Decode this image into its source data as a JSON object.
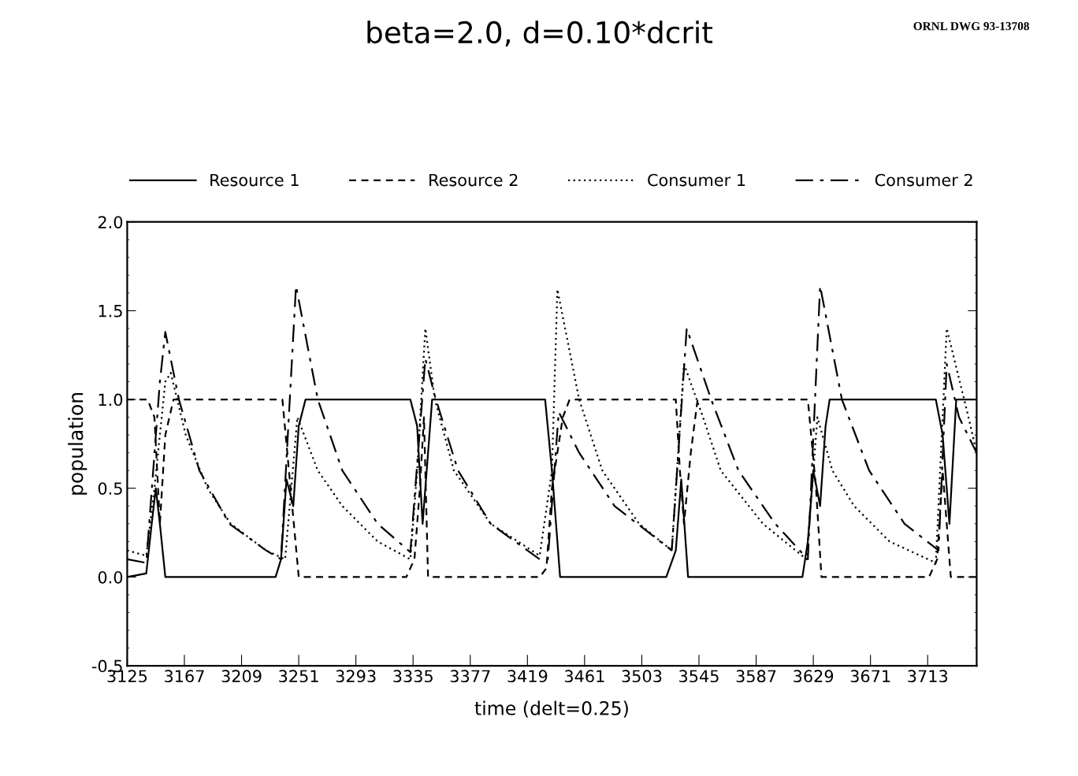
{
  "chart_data": {
    "type": "line",
    "title": "beta=2.0, d=0.10*dcrit",
    "xlabel": "time (delt=0.25)",
    "ylabel": "population",
    "annotations": [
      "ORNL DWG 93-13708"
    ],
    "legend": "top",
    "grid": false,
    "marker": "none",
    "xlim": [
      3125,
      3749
    ],
    "xticks": [
      3125,
      3167,
      3209,
      3251,
      3293,
      3335,
      3377,
      3419,
      3461,
      3503,
      3545,
      3587,
      3629,
      3671,
      3713
    ],
    "ylim": [
      -0.5,
      2.0
    ],
    "yticks": [
      {
        "value": -0.5,
        "label": "-0.5"
      },
      {
        "value": 0,
        "label": "0.0"
      },
      {
        "value": 0.5,
        "label": "0.5"
      },
      {
        "value": 1,
        "label": "1.0"
      },
      {
        "value": 1.5,
        "label": "1.5"
      },
      {
        "value": 2,
        "label": "2.0"
      }
    ],
    "series": [
      {
        "name": "Resource 1",
        "color": "#000000",
        "line_style": "solid",
        "x": [
          3125,
          3139,
          3143,
          3146,
          3149,
          3153,
          3234,
          3238,
          3242,
          3247,
          3251,
          3256,
          3333,
          3338,
          3342,
          3345,
          3349,
          3432,
          3437,
          3443,
          3521,
          3528,
          3532,
          3537,
          3621,
          3625,
          3629,
          3634,
          3638,
          3641,
          3719,
          3724,
          3729,
          3734,
          3749
        ],
        "values": [
          0,
          0.02,
          0.3,
          0.5,
          0.3,
          0,
          0,
          0.1,
          0.55,
          0.4,
          0.85,
          1.0,
          1.0,
          0.85,
          0.3,
          0.6,
          1.0,
          1.0,
          0.6,
          0,
          0,
          0.15,
          0.55,
          0,
          0,
          0.2,
          0.6,
          0.4,
          0.85,
          1.0,
          1.0,
          0.8,
          0.3,
          1.0,
          1.0
        ]
      },
      {
        "name": "Resource 2",
        "color": "#000000",
        "line_style": "dashed",
        "x": [
          3125,
          3140,
          3145,
          3149,
          3153,
          3159,
          3239,
          3245,
          3251,
          3330,
          3336,
          3340,
          3343,
          3346,
          3428,
          3433,
          3437,
          3445,
          3450,
          3528,
          3531,
          3534,
          3539,
          3544,
          3625,
          3631,
          3635,
          3714,
          3720,
          3724,
          3730,
          3749
        ],
        "values": [
          1.0,
          1.0,
          0.9,
          0.3,
          0.8,
          1.0,
          1.0,
          0.5,
          0,
          0,
          0.1,
          0.5,
          0.9,
          0,
          0,
          0.05,
          0.5,
          0.9,
          1.0,
          1.0,
          0.6,
          0.3,
          0.7,
          1.0,
          1.0,
          0.5,
          0,
          0,
          0.1,
          0.6,
          0,
          0
        ]
      },
      {
        "name": "Consumer 1",
        "color": "#000000",
        "line_style": "dotted",
        "x": [
          3125,
          3139,
          3145,
          3153,
          3157,
          3168,
          3184,
          3201,
          3227,
          3241,
          3250,
          3265,
          3283,
          3309,
          3333,
          3338,
          3344,
          3351,
          3365,
          3392,
          3428,
          3437,
          3441,
          3457,
          3474,
          3501,
          3525,
          3534,
          3548,
          3561,
          3592,
          3624,
          3632,
          3643,
          3659,
          3685,
          3719,
          3727,
          3743,
          3749
        ],
        "values": [
          0.15,
          0.12,
          0.5,
          1.1,
          1.15,
          0.8,
          0.5,
          0.3,
          0.15,
          0.1,
          0.9,
          0.6,
          0.4,
          0.2,
          0.1,
          0.6,
          1.4,
          1.0,
          0.6,
          0.3,
          0.12,
          0.6,
          1.62,
          1.0,
          0.6,
          0.3,
          0.15,
          1.2,
          0.9,
          0.6,
          0.3,
          0.1,
          0.9,
          0.6,
          0.4,
          0.2,
          0.08,
          1.4,
          0.9,
          0.7
        ]
      },
      {
        "name": "Consumer 2",
        "color": "#000000",
        "line_style": "dashdot",
        "x": [
          3125,
          3139,
          3149,
          3153,
          3163,
          3178,
          3200,
          3227,
          3238,
          3249,
          3265,
          3283,
          3309,
          3333,
          3344,
          3351,
          3368,
          3392,
          3428,
          3434,
          3442,
          3457,
          3483,
          3525,
          3536,
          3554,
          3574,
          3601,
          3625,
          3634,
          3650,
          3670,
          3696,
          3721,
          3727,
          3736,
          3749
        ],
        "values": [
          0.1,
          0.08,
          1.1,
          1.38,
          1.0,
          0.6,
          0.3,
          0.15,
          0.1,
          1.64,
          1.0,
          0.6,
          0.3,
          0.14,
          1.23,
          1.02,
          0.6,
          0.3,
          0.1,
          0.1,
          0.93,
          0.7,
          0.4,
          0.15,
          1.4,
          1.0,
          0.6,
          0.3,
          0.1,
          1.64,
          1.0,
          0.6,
          0.3,
          0.15,
          1.2,
          0.9,
          0.7
        ]
      }
    ]
  }
}
